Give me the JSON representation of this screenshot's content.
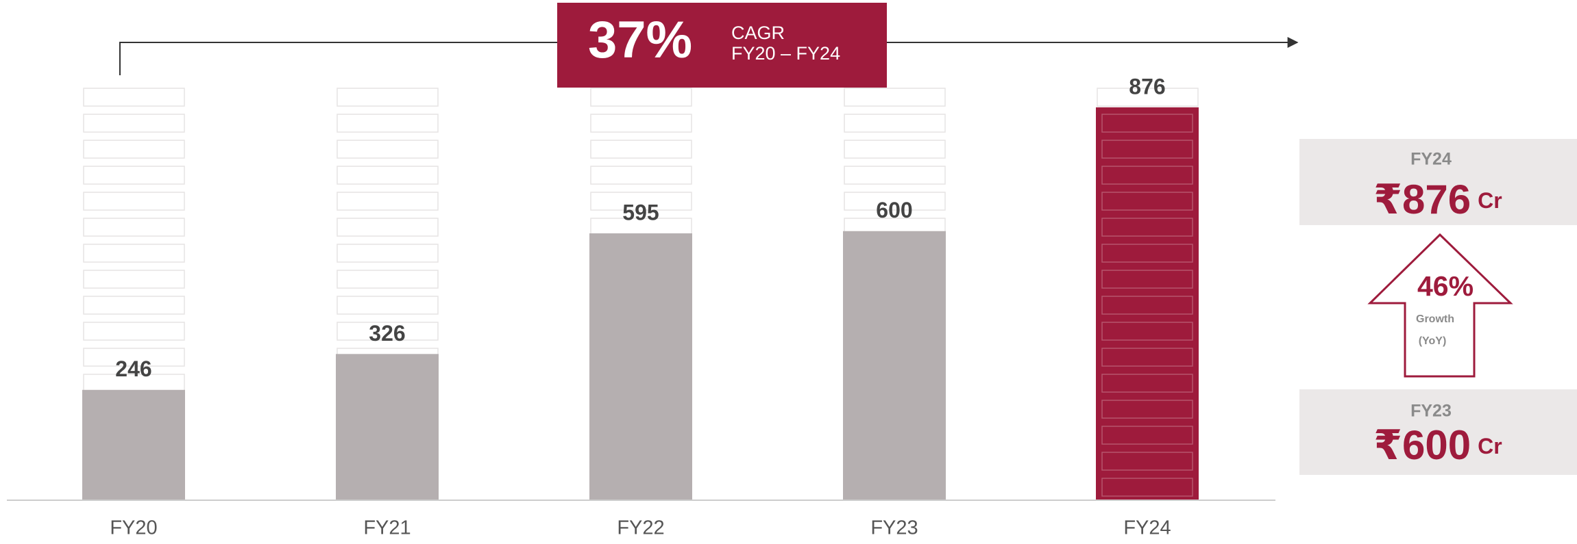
{
  "chart_data": {
    "type": "bar",
    "categories": [
      "FY20",
      "FY21",
      "FY22",
      "FY23",
      "FY24"
    ],
    "values": [
      246,
      326,
      595,
      600,
      876
    ],
    "colors": [
      "#b5afb0",
      "#b5afb0",
      "#b5afb0",
      "#b5afb0",
      "#9e1b3c"
    ],
    "ylim": [
      0,
      920
    ],
    "cagr": {
      "value": "37%",
      "label": "CAGR",
      "period": "FY20 – FY24"
    },
    "summary": {
      "current": {
        "year": "FY24",
        "amount": "₹876",
        "unit": "Cr"
      },
      "growth": {
        "value": "46%",
        "label": "Growth",
        "sublabel": "(YoY)"
      },
      "previous": {
        "year": "FY23",
        "amount": "₹600",
        "unit": "Cr"
      }
    }
  }
}
